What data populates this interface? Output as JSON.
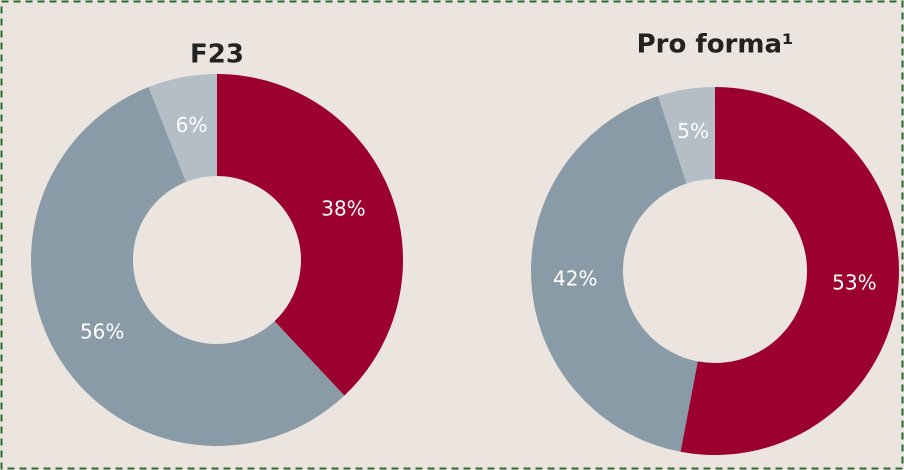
{
  "chart_data": [
    {
      "type": "pie",
      "title": "F23",
      "values": [
        38,
        56,
        6
      ],
      "value_labels": [
        "38%",
        "56%",
        "6%"
      ],
      "colors": [
        "#9b0030",
        "#8a9ba8",
        "#b3bec7"
      ],
      "donut": true
    },
    {
      "type": "pie",
      "title": "Pro forma¹",
      "values": [
        53,
        42,
        5
      ],
      "value_labels": [
        "53%",
        "42%",
        "5%"
      ],
      "colors": [
        "#9b0030",
        "#8a9ba8",
        "#b3bec7"
      ],
      "donut": true
    }
  ]
}
